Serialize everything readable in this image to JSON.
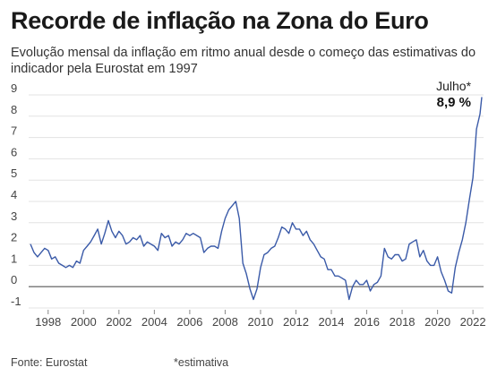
{
  "header": {
    "title": "Recorde de inflação na Zona do Euro",
    "subtitle": "Evolução mensal da inflação em ritmo anual desde o começo das estimativas do indicador pela Eurostat em 1997"
  },
  "footer": {
    "source": "Fonte: Eurostat",
    "note": "*estimativa"
  },
  "colors": {
    "line": "#3a5aa8",
    "zero_line": "#555555",
    "grid": "#e3e3e3",
    "text": "#444444"
  },
  "chart_data": {
    "type": "line",
    "title": "Recorde de inflação na Zona do Euro",
    "xlabel": "",
    "ylabel": "",
    "ylim": [
      -1,
      9
    ],
    "xlim": [
      1997,
      2022.6
    ],
    "grid": true,
    "y_ticks": [
      "9",
      "8",
      "7",
      "6",
      "5",
      "4",
      "3",
      "2",
      "1",
      "0",
      "-1"
    ],
    "y_tick_values": [
      9,
      8,
      7,
      6,
      5,
      4,
      3,
      2,
      1,
      0,
      -1
    ],
    "x_ticks": [
      "1998",
      "2000",
      "2002",
      "2004",
      "2006",
      "2008",
      "2010",
      "2012",
      "2014",
      "2016",
      "2018",
      "2020",
      "2022"
    ],
    "x_tick_values": [
      1998,
      2000,
      2002,
      2004,
      2006,
      2008,
      2010,
      2012,
      2014,
      2016,
      2018,
      2020,
      2022
    ],
    "annotation": {
      "label": "Julho*",
      "value_label": "8,9 %",
      "x": 2022.5,
      "y": 8.9
    },
    "series": [
      {
        "values": [
          [
            1997.0,
            2.0
          ],
          [
            1997.2,
            1.6
          ],
          [
            1997.4,
            1.4
          ],
          [
            1997.6,
            1.6
          ],
          [
            1997.8,
            1.8
          ],
          [
            1998.0,
            1.7
          ],
          [
            1998.2,
            1.3
          ],
          [
            1998.4,
            1.4
          ],
          [
            1998.6,
            1.1
          ],
          [
            1998.8,
            1.0
          ],
          [
            1999.0,
            0.9
          ],
          [
            1999.2,
            1.0
          ],
          [
            1999.4,
            0.9
          ],
          [
            1999.6,
            1.2
          ],
          [
            1999.8,
            1.1
          ],
          [
            2000.0,
            1.7
          ],
          [
            2000.2,
            1.9
          ],
          [
            2000.4,
            2.1
          ],
          [
            2000.6,
            2.4
          ],
          [
            2000.8,
            2.7
          ],
          [
            2001.0,
            2.0
          ],
          [
            2001.2,
            2.5
          ],
          [
            2001.4,
            3.1
          ],
          [
            2001.6,
            2.6
          ],
          [
            2001.8,
            2.3
          ],
          [
            2002.0,
            2.6
          ],
          [
            2002.2,
            2.4
          ],
          [
            2002.4,
            2.0
          ],
          [
            2002.6,
            2.1
          ],
          [
            2002.8,
            2.3
          ],
          [
            2003.0,
            2.2
          ],
          [
            2003.2,
            2.4
          ],
          [
            2003.4,
            1.9
          ],
          [
            2003.6,
            2.1
          ],
          [
            2003.8,
            2.0
          ],
          [
            2004.0,
            1.9
          ],
          [
            2004.2,
            1.7
          ],
          [
            2004.4,
            2.5
          ],
          [
            2004.6,
            2.3
          ],
          [
            2004.8,
            2.4
          ],
          [
            2005.0,
            1.9
          ],
          [
            2005.2,
            2.1
          ],
          [
            2005.4,
            2.0
          ],
          [
            2005.6,
            2.2
          ],
          [
            2005.8,
            2.5
          ],
          [
            2006.0,
            2.4
          ],
          [
            2006.2,
            2.5
          ],
          [
            2006.4,
            2.4
          ],
          [
            2006.6,
            2.3
          ],
          [
            2006.8,
            1.6
          ],
          [
            2007.0,
            1.8
          ],
          [
            2007.2,
            1.9
          ],
          [
            2007.4,
            1.9
          ],
          [
            2007.6,
            1.8
          ],
          [
            2007.8,
            2.6
          ],
          [
            2008.0,
            3.2
          ],
          [
            2008.2,
            3.6
          ],
          [
            2008.4,
            3.8
          ],
          [
            2008.6,
            4.0
          ],
          [
            2008.8,
            3.2
          ],
          [
            2009.0,
            1.1
          ],
          [
            2009.2,
            0.6
          ],
          [
            2009.4,
            -0.1
          ],
          [
            2009.6,
            -0.6
          ],
          [
            2009.8,
            -0.1
          ],
          [
            2010.0,
            0.9
          ],
          [
            2010.2,
            1.5
          ],
          [
            2010.4,
            1.6
          ],
          [
            2010.6,
            1.8
          ],
          [
            2010.8,
            1.9
          ],
          [
            2011.0,
            2.3
          ],
          [
            2011.2,
            2.8
          ],
          [
            2011.4,
            2.7
          ],
          [
            2011.6,
            2.5
          ],
          [
            2011.8,
            3.0
          ],
          [
            2012.0,
            2.7
          ],
          [
            2012.2,
            2.7
          ],
          [
            2012.4,
            2.4
          ],
          [
            2012.6,
            2.6
          ],
          [
            2012.8,
            2.2
          ],
          [
            2013.0,
            2.0
          ],
          [
            2013.2,
            1.7
          ],
          [
            2013.4,
            1.4
          ],
          [
            2013.6,
            1.3
          ],
          [
            2013.8,
            0.8
          ],
          [
            2014.0,
            0.8
          ],
          [
            2014.2,
            0.5
          ],
          [
            2014.4,
            0.5
          ],
          [
            2014.6,
            0.4
          ],
          [
            2014.8,
            0.3
          ],
          [
            2015.0,
            -0.6
          ],
          [
            2015.2,
            0.0
          ],
          [
            2015.4,
            0.3
          ],
          [
            2015.6,
            0.1
          ],
          [
            2015.8,
            0.1
          ],
          [
            2016.0,
            0.3
          ],
          [
            2016.2,
            -0.2
          ],
          [
            2016.4,
            0.1
          ],
          [
            2016.6,
            0.2
          ],
          [
            2016.8,
            0.5
          ],
          [
            2017.0,
            1.8
          ],
          [
            2017.2,
            1.4
          ],
          [
            2017.4,
            1.3
          ],
          [
            2017.6,
            1.5
          ],
          [
            2017.8,
            1.5
          ],
          [
            2018.0,
            1.2
          ],
          [
            2018.2,
            1.3
          ],
          [
            2018.4,
            2.0
          ],
          [
            2018.6,
            2.1
          ],
          [
            2018.8,
            2.2
          ],
          [
            2019.0,
            1.4
          ],
          [
            2019.2,
            1.7
          ],
          [
            2019.4,
            1.2
          ],
          [
            2019.6,
            1.0
          ],
          [
            2019.8,
            1.0
          ],
          [
            2020.0,
            1.4
          ],
          [
            2020.2,
            0.7
          ],
          [
            2020.4,
            0.3
          ],
          [
            2020.6,
            -0.2
          ],
          [
            2020.8,
            -0.3
          ],
          [
            2021.0,
            0.9
          ],
          [
            2021.2,
            1.6
          ],
          [
            2021.4,
            2.2
          ],
          [
            2021.6,
            3.0
          ],
          [
            2021.8,
            4.1
          ],
          [
            2022.0,
            5.1
          ],
          [
            2022.2,
            7.4
          ],
          [
            2022.4,
            8.1
          ],
          [
            2022.5,
            8.9
          ]
        ]
      }
    ]
  }
}
